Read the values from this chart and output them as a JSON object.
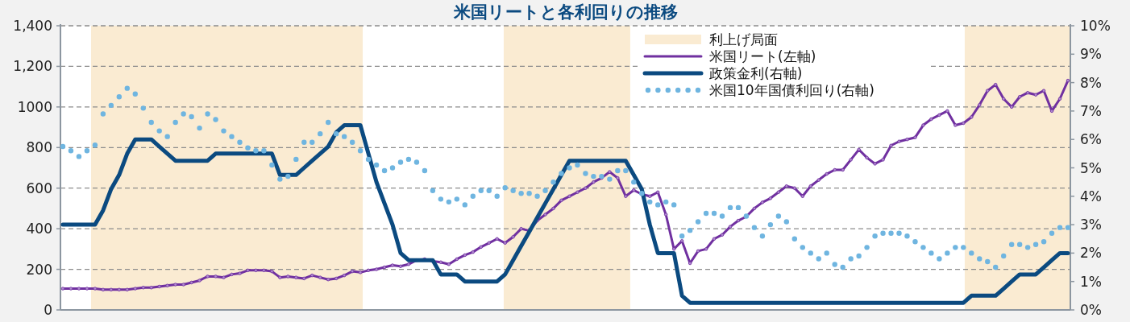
{
  "chart_data": {
    "type": "line",
    "title": "米国リートと各利回りの推移",
    "categories": [
      null,
      null,
      null,
      null,
      null,
      null,
      null,
      null,
      null,
      null,
      null,
      null,
      null,
      null,
      null,
      null,
      null,
      null,
      null,
      null,
      null,
      null,
      null,
      null,
      null,
      null,
      null,
      null,
      null,
      null,
      null,
      null,
      null,
      null,
      null,
      null,
      null,
      null,
      null,
      null,
      null,
      null,
      null,
      null,
      null,
      null,
      null,
      null,
      null,
      null,
      null,
      null,
      null,
      null,
      null,
      null,
      null,
      null,
      null,
      null,
      null,
      null,
      null,
      null,
      null,
      null,
      null,
      null,
      null,
      null,
      null,
      null,
      null,
      null,
      null,
      null,
      null,
      null,
      null,
      null,
      null,
      null,
      null,
      null,
      null,
      null,
      null,
      null,
      null,
      null,
      null,
      null,
      null,
      null,
      null,
      null,
      null,
      null,
      null,
      null,
      null,
      null,
      null,
      null,
      null,
      null,
      null,
      null,
      null,
      null,
      null,
      null,
      null,
      null,
      null,
      null,
      null,
      null,
      null,
      null,
      null,
      null,
      null,
      null,
      null,
      null
    ],
    "series": [
      {
        "name": "米国リート(左軸)",
        "marker": "circle",
        "color": "#7030a0",
        "values": [
          105,
          105,
          105,
          105,
          105,
          100,
          100,
          100,
          100,
          105,
          110,
          110,
          115,
          120,
          125,
          125,
          135,
          145,
          165,
          165,
          160,
          175,
          180,
          195,
          195,
          195,
          190,
          160,
          165,
          160,
          155,
          170,
          160,
          150,
          155,
          170,
          190,
          185,
          195,
          200,
          210,
          220,
          215,
          225,
          245,
          250,
          240,
          235,
          225,
          250,
          270,
          285,
          310,
          330,
          350,
          330,
          360,
          400,
          390,
          440,
          470,
          500,
          540,
          560,
          580,
          600,
          630,
          650,
          680,
          650,
          560,
          590,
          570,
          560,
          580,
          470,
          300,
          340,
          230,
          290,
          300,
          350,
          370,
          410,
          440,
          460,
          500,
          530,
          550,
          580,
          610,
          600,
          560,
          610,
          640,
          670,
          690,
          690,
          740,
          790,
          750,
          720,
          740,
          810,
          830,
          840,
          850,
          910,
          940,
          960,
          980,
          910,
          920,
          950,
          1010,
          1080,
          1110,
          1040,
          1000,
          1050,
          1070,
          1060,
          1080,
          980,
          1040,
          1130
        ]
      },
      {
        "name": "政策金利(右軸)",
        "axis": "y2",
        "marker": "none",
        "color": "#0b4a80",
        "values": [
          3.0,
          3.0,
          3.0,
          3.0,
          3.0,
          3.5,
          4.25,
          4.75,
          5.5,
          6.0,
          6.0,
          6.0,
          5.75,
          5.5,
          5.25,
          5.25,
          5.25,
          5.25,
          5.25,
          5.5,
          5.5,
          5.5,
          5.5,
          5.5,
          5.5,
          5.5,
          5.5,
          4.75,
          4.75,
          4.75,
          5.0,
          5.25,
          5.5,
          5.75,
          6.25,
          6.5,
          6.5,
          6.5,
          5.5,
          4.5,
          3.75,
          3.0,
          2.0,
          1.75,
          1.75,
          1.75,
          1.75,
          1.25,
          1.25,
          1.25,
          1.0,
          1.0,
          1.0,
          1.0,
          1.0,
          1.25,
          1.75,
          2.25,
          2.75,
          3.25,
          3.75,
          4.25,
          4.75,
          5.25,
          5.25,
          5.25,
          5.25,
          5.25,
          5.25,
          5.25,
          5.25,
          4.75,
          4.25,
          3.0,
          2.0,
          2.0,
          2.0,
          0.5,
          0.25,
          0.25,
          0.25,
          0.25,
          0.25,
          0.25,
          0.25,
          0.25,
          0.25,
          0.25,
          0.25,
          0.25,
          0.25,
          0.25,
          0.25,
          0.25,
          0.25,
          0.25,
          0.25,
          0.25,
          0.25,
          0.25,
          0.25,
          0.25,
          0.25,
          0.25,
          0.25,
          0.25,
          0.25,
          0.25,
          0.25,
          0.25,
          0.25,
          0.25,
          0.25,
          0.5,
          0.5,
          0.5,
          0.5,
          0.75,
          1.0,
          1.25,
          1.25,
          1.25,
          1.5,
          1.75,
          2.0,
          2.0
        ]
      },
      {
        "name": "米国10年国債利回り(右軸)",
        "type": "scatter",
        "axis": "y2",
        "marker": "circle",
        "color": "#6fb5e0",
        "values": [
          5.75,
          5.6,
          5.4,
          5.6,
          5.8,
          6.9,
          7.2,
          7.5,
          7.8,
          7.6,
          7.1,
          6.6,
          6.3,
          6.1,
          6.6,
          6.9,
          6.8,
          6.4,
          6.9,
          6.7,
          6.3,
          6.1,
          5.9,
          5.7,
          5.6,
          5.6,
          5.1,
          4.6,
          4.7,
          5.3,
          5.9,
          5.9,
          6.2,
          6.6,
          6.2,
          6.1,
          5.9,
          5.6,
          5.3,
          5.1,
          4.9,
          5.0,
          5.2,
          5.3,
          5.2,
          4.9,
          4.2,
          3.9,
          3.8,
          3.9,
          3.7,
          4.0,
          4.2,
          4.2,
          4.0,
          4.3,
          4.2,
          4.1,
          4.1,
          4.0,
          4.2,
          4.5,
          4.8,
          5.0,
          5.1,
          4.8,
          4.7,
          4.7,
          4.6,
          4.9,
          4.9,
          4.5,
          4.1,
          3.8,
          3.7,
          3.8,
          3.7,
          2.6,
          2.8,
          3.1,
          3.4,
          3.4,
          3.3,
          3.6,
          3.6,
          3.3,
          2.9,
          2.6,
          3.0,
          3.3,
          3.1,
          2.5,
          2.2,
          2.0,
          1.8,
          2.0,
          1.6,
          1.5,
          1.8,
          1.9,
          2.2,
          2.6,
          2.7,
          2.7,
          2.7,
          2.6,
          2.4,
          2.2,
          2.0,
          1.8,
          2.0,
          2.2,
          2.2,
          2.0,
          1.8,
          1.7,
          1.5,
          1.9,
          2.3,
          2.3,
          2.2,
          2.3,
          2.4,
          2.7,
          2.9,
          2.9
        ]
      }
    ],
    "annotations": [
      "利上げ局面"
    ],
    "ylim": [
      0,
      1400
    ],
    "yticks": [
      0,
      200,
      400,
      600,
      800,
      1000,
      {
        "value": 1200,
        "label": "1,200"
      },
      {
        "value": 1400,
        "label": "1,400"
      }
    ],
    "y2lim": [
      0,
      10
    ],
    "y2ticks": [
      {
        "value": 0,
        "label": "0%"
      },
      {
        "value": 1,
        "label": "1%"
      },
      {
        "value": 2,
        "label": "2%"
      },
      {
        "value": 3,
        "label": "3%"
      },
      {
        "value": 4,
        "label": "4%"
      },
      {
        "value": 5,
        "label": "5%"
      },
      {
        "value": 6,
        "label": "6%"
      },
      {
        "value": 7,
        "label": "7%"
      },
      {
        "value": 8,
        "label": "8%"
      },
      {
        "value": 9,
        "label": "9%"
      },
      {
        "value": 10,
        "label": "10%"
      }
    ],
    "grid": "y",
    "legend": "top right"
  }
}
